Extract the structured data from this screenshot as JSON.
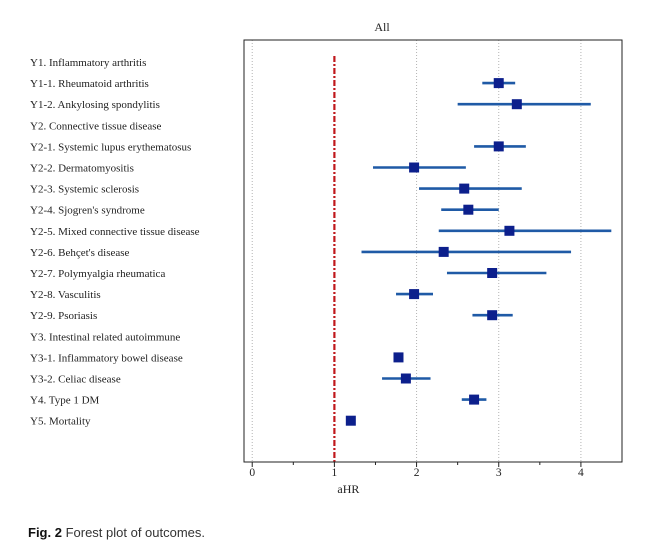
{
  "chart_data": {
    "type": "forest",
    "title": "All",
    "xlabel": "aHR",
    "ylabel": "",
    "xlim": [
      -0.1,
      4.5
    ],
    "xticks": [
      0,
      1,
      2,
      3,
      4
    ],
    "reference_line": 1,
    "grid": "vertical dotted",
    "rows": [
      {
        "label": "Y1. Inflammatory arthritis"
      },
      {
        "label": "Y1-1. Rheumatoid arthritis",
        "est": 3.0,
        "lo": 2.8,
        "hi": 3.2
      },
      {
        "label": "Y1-2. Ankylosing spondylitis",
        "est": 3.22,
        "lo": 2.5,
        "hi": 4.12
      },
      {
        "label": "Y2. Connective tissue disease"
      },
      {
        "label": "Y2-1. Systemic lupus erythematosus",
        "est": 3.0,
        "lo": 2.7,
        "hi": 3.33
      },
      {
        "label": "Y2-2. Dermatomyositis",
        "est": 1.97,
        "lo": 1.47,
        "hi": 2.6
      },
      {
        "label": "Y2-3. Systemic sclerosis",
        "est": 2.58,
        "lo": 2.03,
        "hi": 3.28
      },
      {
        "label": "Y2-4. Sjogren's syndrome",
        "est": 2.63,
        "lo": 2.3,
        "hi": 3.0
      },
      {
        "label": "Y2-5. Mixed connective tissue disease",
        "est": 3.13,
        "lo": 2.27,
        "hi": 4.37
      },
      {
        "label": "Y2-6. Behçet's disease",
        "est": 2.33,
        "lo": 1.33,
        "hi": 3.88
      },
      {
        "label": "Y2-7. Polymyalgia rheumatica",
        "est": 2.92,
        "lo": 2.37,
        "hi": 3.58
      },
      {
        "label": "Y2-8. Vasculitis",
        "est": 1.97,
        "lo": 1.75,
        "hi": 2.2
      },
      {
        "label": "Y2-9. Psoriasis",
        "est": 2.92,
        "lo": 2.68,
        "hi": 3.17
      },
      {
        "label": "Y3. Intestinal related autoimmune"
      },
      {
        "label": "Y3-1. Inflammatory bowel disease",
        "est": 1.78
      },
      {
        "label": "Y3-2. Celiac disease",
        "est": 1.87,
        "lo": 1.58,
        "hi": 2.17
      },
      {
        "label": "Y4. Type 1 DM",
        "est": 2.7,
        "lo": 2.55,
        "hi": 2.85
      },
      {
        "label": "Y5. Mortality",
        "est": 1.2
      }
    ],
    "colors": {
      "marker": "#0c1f8c",
      "ci": "#1f5aa6",
      "reference": "#c0181c",
      "grid": "#b3b3b3"
    }
  },
  "caption": {
    "prefix": "Fig. 2",
    "text": " Forest plot of outcomes."
  }
}
